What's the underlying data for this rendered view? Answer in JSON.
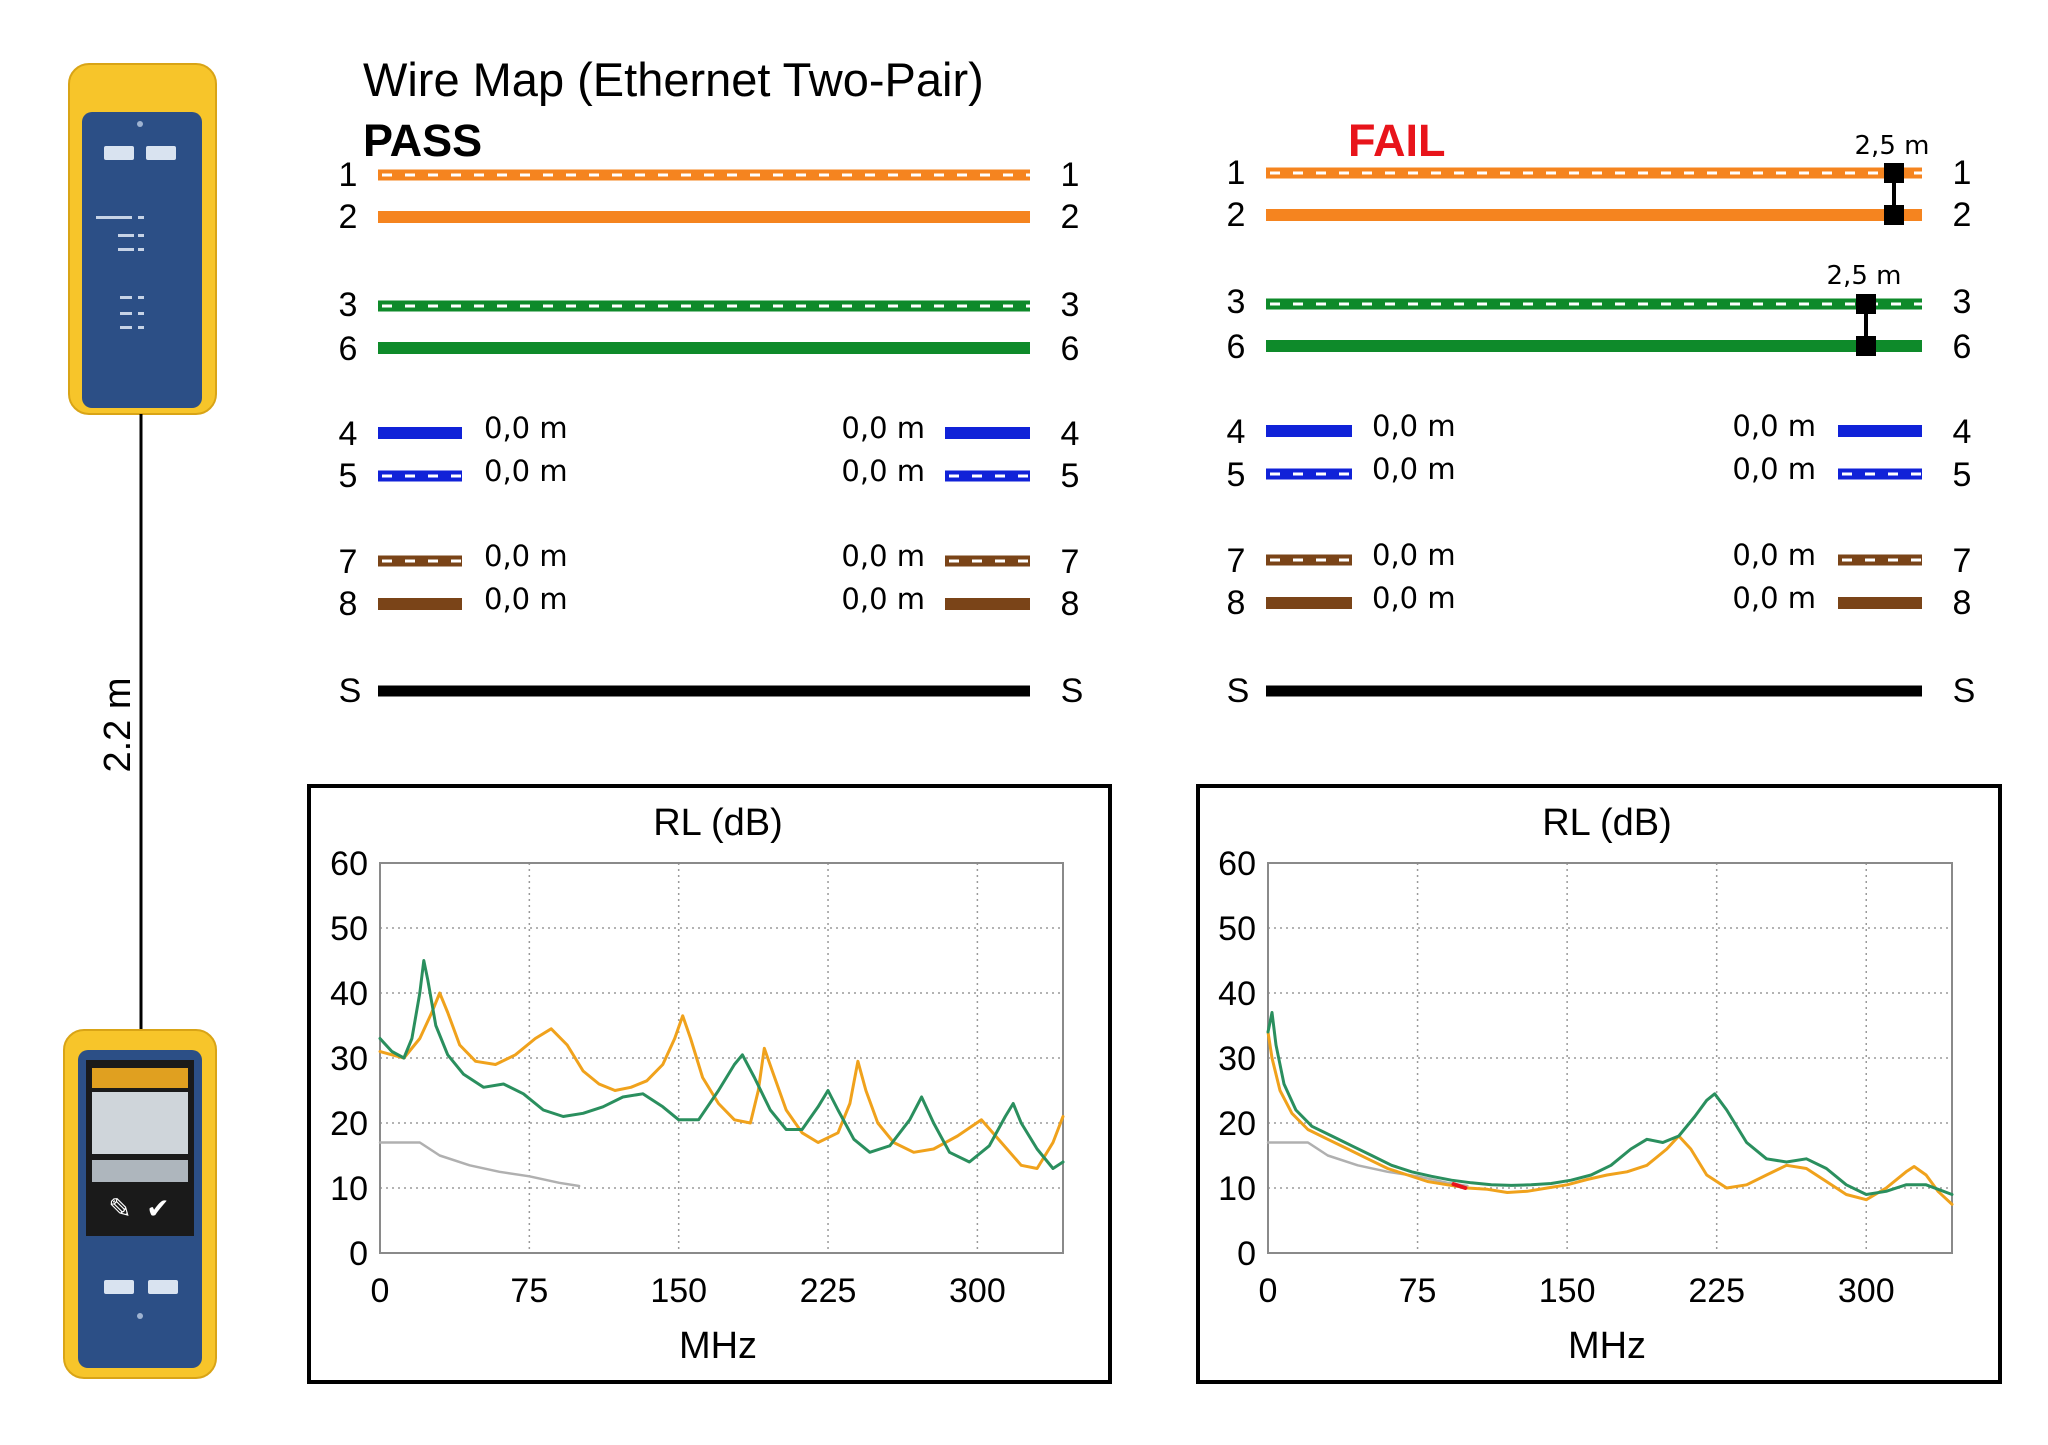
{
  "title": "Wire Map (Ethernet Two-Pair)",
  "connection_length": "2.2 m",
  "colors": {
    "orange": "#f5841f",
    "green": "#0e8a2a",
    "blue": "#1022d8",
    "brown": "#7a4418",
    "shield": "#000000",
    "fail": "#e8141b",
    "device_yellow": "#f7c52a",
    "device_blue": "#2c4f86"
  },
  "panels": [
    {
      "status": "PASS",
      "status_color": "#000000",
      "pairs": [
        {
          "pin_top": "1",
          "pin_bottom": "2",
          "color": "orange",
          "fault_length": ""
        },
        {
          "pin_top": "3",
          "pin_bottom": "6",
          "color": "green",
          "fault_length": ""
        }
      ],
      "short_pairs": [
        {
          "pin_top": "4",
          "pin_bottom": "5",
          "color": "blue",
          "left_top": "0,0 m",
          "left_bottom": "0,0 m",
          "right_top": "0,0 m",
          "right_bottom": "0,0 m"
        },
        {
          "pin_top": "7",
          "pin_bottom": "8",
          "color": "brown",
          "left_top": "0,0 m",
          "left_bottom": "0,0 m",
          "right_top": "0,0 m",
          "right_bottom": "0,0 m"
        }
      ],
      "shield_label": "S"
    },
    {
      "status": "FAIL",
      "status_color": "#e8141b",
      "pairs": [
        {
          "pin_top": "1",
          "pin_bottom": "2",
          "color": "orange",
          "fault_length": "2,5 m"
        },
        {
          "pin_top": "3",
          "pin_bottom": "6",
          "color": "green",
          "fault_length": "2,5 m"
        }
      ],
      "short_pairs": [
        {
          "pin_top": "4",
          "pin_bottom": "5",
          "color": "blue",
          "left_top": "0,0 m",
          "left_bottom": "0,0 m",
          "right_top": "0,0 m",
          "right_bottom": "0,0 m"
        },
        {
          "pin_top": "7",
          "pin_bottom": "8",
          "color": "brown",
          "left_top": "0,0 m",
          "left_bottom": "0,0 m",
          "right_top": "0,0 m",
          "right_bottom": "0,0 m"
        }
      ],
      "shield_label": "S"
    }
  ],
  "chart_data": [
    {
      "type": "line",
      "title": "RL (dB)",
      "xlabel": "MHz",
      "ylabel": "",
      "xlim": [
        0,
        343
      ],
      "ylim": [
        0,
        60
      ],
      "x_ticks": [
        0,
        75,
        150,
        225,
        300
      ],
      "y_ticks": [
        0,
        10,
        20,
        30,
        40,
        50,
        60
      ],
      "grid": true,
      "series": [
        {
          "name": "limit",
          "color": "#b0b0b0",
          "points": [
            [
              0,
              17
            ],
            [
              20,
              17
            ],
            [
              30,
              15
            ],
            [
              45,
              13.5
            ],
            [
              60,
              12.5
            ],
            [
              75,
              11.8
            ],
            [
              90,
              10.8
            ],
            [
              100,
              10.3
            ]
          ]
        },
        {
          "name": "pair-orange",
          "color": "#f0a21c",
          "points": [
            [
              0,
              31
            ],
            [
              6,
              30.5
            ],
            [
              12,
              30
            ],
            [
              20,
              33
            ],
            [
              26,
              37
            ],
            [
              30,
              40
            ],
            [
              34,
              37
            ],
            [
              40,
              32
            ],
            [
              48,
              29.5
            ],
            [
              58,
              29
            ],
            [
              68,
              30.5
            ],
            [
              78,
              33
            ],
            [
              86,
              34.5
            ],
            [
              94,
              32
            ],
            [
              102,
              28
            ],
            [
              110,
              26
            ],
            [
              118,
              25
            ],
            [
              126,
              25.5
            ],
            [
              134,
              26.5
            ],
            [
              142,
              29
            ],
            [
              148,
              33
            ],
            [
              152,
              36.5
            ],
            [
              156,
              33
            ],
            [
              162,
              27
            ],
            [
              170,
              23
            ],
            [
              178,
              20.5
            ],
            [
              186,
              20
            ],
            [
              190,
              25
            ],
            [
              193,
              31.5
            ],
            [
              197,
              28
            ],
            [
              204,
              22
            ],
            [
              212,
              18.5
            ],
            [
              220,
              17
            ],
            [
              230,
              18.5
            ],
            [
              236,
              23
            ],
            [
              240,
              29.5
            ],
            [
              244,
              25
            ],
            [
              250,
              20
            ],
            [
              258,
              17
            ],
            [
              268,
              15.5
            ],
            [
              278,
              16
            ],
            [
              290,
              18
            ],
            [
              302,
              20.5
            ],
            [
              312,
              17
            ],
            [
              322,
              13.5
            ],
            [
              330,
              13
            ],
            [
              338,
              17
            ],
            [
              343,
              21
            ]
          ]
        },
        {
          "name": "pair-green",
          "color": "#2a8f5e",
          "points": [
            [
              0,
              33
            ],
            [
              6,
              31
            ],
            [
              12,
              30
            ],
            [
              16,
              33
            ],
            [
              20,
              40
            ],
            [
              22,
              45
            ],
            [
              24,
              42
            ],
            [
              28,
              35
            ],
            [
              34,
              30.5
            ],
            [
              42,
              27.5
            ],
            [
              52,
              25.5
            ],
            [
              62,
              26
            ],
            [
              72,
              24.5
            ],
            [
              82,
              22
            ],
            [
              92,
              21
            ],
            [
              102,
              21.5
            ],
            [
              112,
              22.5
            ],
            [
              122,
              24
            ],
            [
              132,
              24.5
            ],
            [
              142,
              22.5
            ],
            [
              150,
              20.5
            ],
            [
              160,
              20.5
            ],
            [
              170,
              25
            ],
            [
              178,
              29
            ],
            [
              182,
              30.5
            ],
            [
              188,
              27
            ],
            [
              196,
              22
            ],
            [
              204,
              19
            ],
            [
              212,
              19
            ],
            [
              220,
              22.5
            ],
            [
              225,
              25
            ],
            [
              230,
              22
            ],
            [
              238,
              17.5
            ],
            [
              246,
              15.5
            ],
            [
              256,
              16.5
            ],
            [
              266,
              20.5
            ],
            [
              272,
              24
            ],
            [
              278,
              20
            ],
            [
              286,
              15.5
            ],
            [
              296,
              14
            ],
            [
              306,
              16.5
            ],
            [
              314,
              21
            ],
            [
              318,
              23
            ],
            [
              322,
              20
            ],
            [
              330,
              16
            ],
            [
              338,
              13
            ],
            [
              343,
              14
            ]
          ]
        }
      ]
    },
    {
      "type": "line",
      "title": "RL (dB)",
      "xlabel": "MHz",
      "ylabel": "",
      "xlim": [
        0,
        343
      ],
      "ylim": [
        0,
        60
      ],
      "x_ticks": [
        0,
        75,
        150,
        225,
        300
      ],
      "y_ticks": [
        0,
        10,
        20,
        30,
        40,
        50,
        60
      ],
      "grid": true,
      "series": [
        {
          "name": "limit",
          "color": "#b0b0b0",
          "points": [
            [
              0,
              17
            ],
            [
              20,
              17
            ],
            [
              30,
              15
            ],
            [
              45,
              13.5
            ],
            [
              60,
              12.5
            ],
            [
              75,
              11.8
            ],
            [
              90,
              10.8
            ],
            [
              100,
              10.3
            ]
          ]
        },
        {
          "name": "pair-orange",
          "color": "#f0a21c",
          "points": [
            [
              0,
              34
            ],
            [
              2,
              30
            ],
            [
              6,
              25
            ],
            [
              12,
              21.5
            ],
            [
              20,
              19
            ],
            [
              30,
              17.5
            ],
            [
              40,
              16
            ],
            [
              50,
              14.5
            ],
            [
              60,
              13
            ],
            [
              70,
              12
            ],
            [
              80,
              11
            ],
            [
              90,
              10.5
            ],
            [
              100,
              10
            ],
            [
              110,
              9.8
            ],
            [
              120,
              9.3
            ],
            [
              130,
              9.5
            ],
            [
              140,
              10
            ],
            [
              150,
              10.5
            ],
            [
              160,
              11.3
            ],
            [
              170,
              12
            ],
            [
              180,
              12.5
            ],
            [
              190,
              13.5
            ],
            [
              200,
              16
            ],
            [
              206,
              18
            ],
            [
              212,
              16
            ],
            [
              220,
              12
            ],
            [
              230,
              10
            ],
            [
              240,
              10.5
            ],
            [
              250,
              12
            ],
            [
              260,
              13.5
            ],
            [
              270,
              13
            ],
            [
              280,
              11
            ],
            [
              290,
              9
            ],
            [
              300,
              8.2
            ],
            [
              310,
              10
            ],
            [
              320,
              12.5
            ],
            [
              324,
              13.3
            ],
            [
              330,
              12
            ],
            [
              336,
              9.5
            ],
            [
              343,
              7.5
            ]
          ]
        },
        {
          "name": "pair-green",
          "color": "#2a8f5e",
          "points": [
            [
              0,
              34
            ],
            [
              2,
              37
            ],
            [
              4,
              32
            ],
            [
              8,
              26
            ],
            [
              14,
              22
            ],
            [
              22,
              19.5
            ],
            [
              32,
              18
            ],
            [
              42,
              16.5
            ],
            [
              52,
              15
            ],
            [
              62,
              13.5
            ],
            [
              72,
              12.5
            ],
            [
              82,
              11.8
            ],
            [
              92,
              11.2
            ],
            [
              102,
              10.8
            ],
            [
              112,
              10.5
            ],
            [
              122,
              10.4
            ],
            [
              132,
              10.5
            ],
            [
              142,
              10.7
            ],
            [
              152,
              11.2
            ],
            [
              162,
              12
            ],
            [
              172,
              13.5
            ],
            [
              182,
              16
            ],
            [
              190,
              17.5
            ],
            [
              198,
              17
            ],
            [
              206,
              18
            ],
            [
              214,
              21
            ],
            [
              220,
              23.5
            ],
            [
              224,
              24.5
            ],
            [
              230,
              22
            ],
            [
              240,
              17
            ],
            [
              250,
              14.5
            ],
            [
              260,
              14
            ],
            [
              270,
              14.5
            ],
            [
              280,
              13
            ],
            [
              290,
              10.5
            ],
            [
              300,
              9
            ],
            [
              310,
              9.5
            ],
            [
              320,
              10.5
            ],
            [
              330,
              10.5
            ],
            [
              343,
              9
            ]
          ]
        },
        {
          "name": "fail-marker",
          "color": "#e8141b",
          "points": [
            [
              93,
              10.6
            ],
            [
              99,
              10
            ]
          ]
        }
      ]
    }
  ]
}
